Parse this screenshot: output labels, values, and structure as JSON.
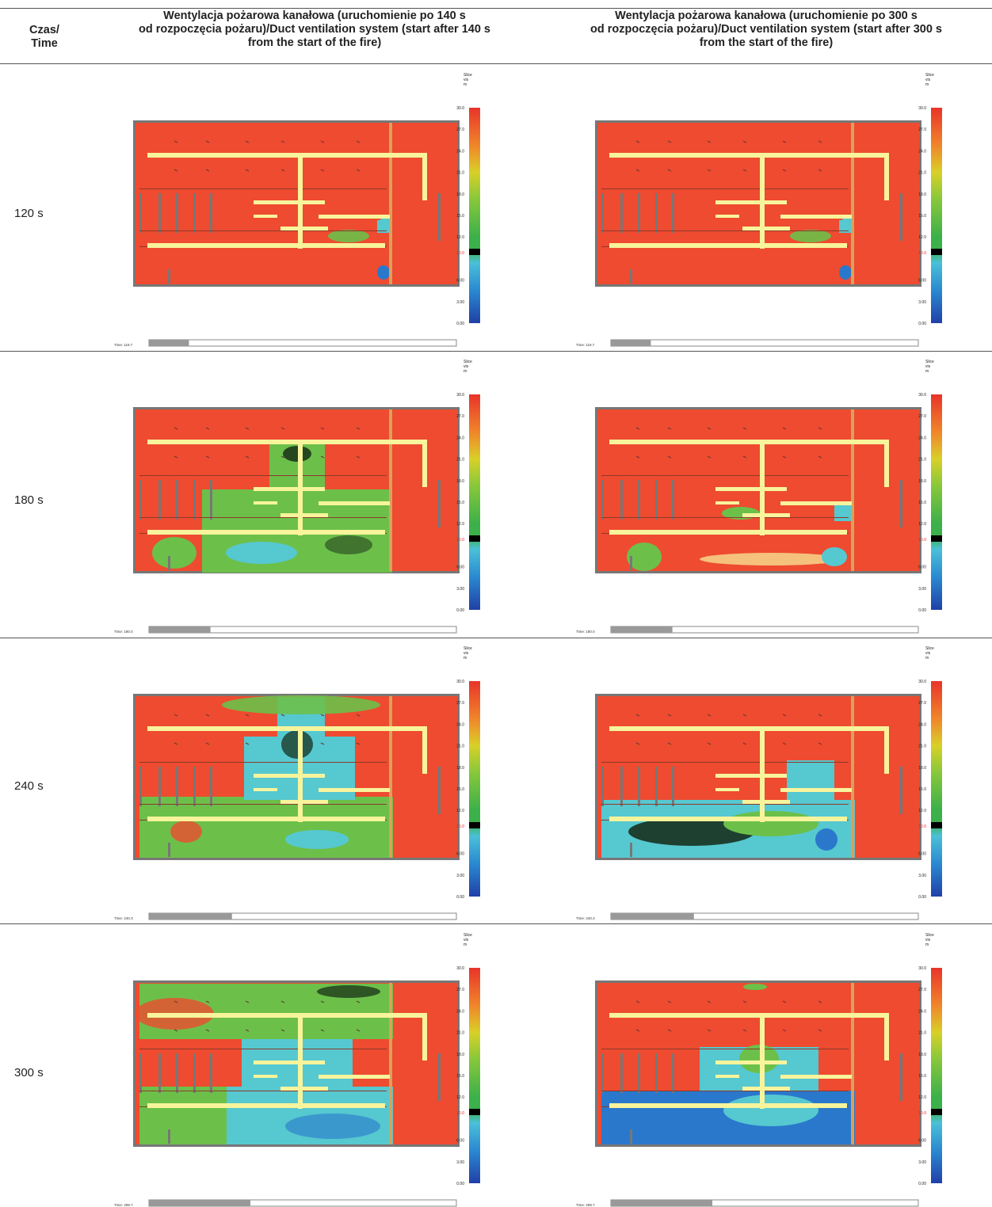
{
  "table": {
    "col0_header": [
      "Czas/",
      "Time"
    ],
    "col1_header": [
      "Wentylacja pożarowa kanałowa (uruchomienie po 140 s",
      "od rozpoczęcia pożaru)/Duct ventilation system (start after 140 s",
      "from the start of the fire)"
    ],
    "col2_header": [
      "Wentylacja pożarowa kanałowa (uruchomienie po 300 s",
      "od rozpoczęcia pożaru)/Duct ventilation system (start after 300 s",
      "from the start of the fire)"
    ],
    "rows": [
      {
        "time": "120 s",
        "left_time": "Time: 119.7",
        "right_time": "Time: 119.7",
        "left_progress": 0.13,
        "right_progress": 0.13,
        "left_spread": 0,
        "right_spread": 0
      },
      {
        "time": "180 s",
        "left_time": "Time: 180.0",
        "right_time": "Time: 180.0",
        "left_progress": 0.2,
        "right_progress": 0.2,
        "left_spread": 1,
        "right_spread": 1
      },
      {
        "time": "240 s",
        "left_time": "Time: 240.3",
        "right_time": "Time: 240.3",
        "left_progress": 0.27,
        "right_progress": 0.27,
        "left_spread": 2,
        "right_spread": 2
      },
      {
        "time": "300 s",
        "left_time": "Time: 299.7",
        "right_time": "Time: 299.7",
        "left_progress": 0.33,
        "right_progress": 0.33,
        "left_spread": 3,
        "right_spread": 3
      }
    ]
  },
  "colorbar": {
    "title": [
      "Slice",
      "vis",
      "m"
    ],
    "ticks": [
      "30.0",
      "27.0",
      "24.0",
      "21.0",
      "18.0",
      "15.0",
      "12.0",
      "10.0",
      "6.00",
      "3.00",
      "0.00"
    ],
    "highlight_tick": "10.0",
    "highlight_color": "#e0201c"
  },
  "colors": {
    "background_red": "#ee4b30",
    "duct_yellow": "#f8f49c",
    "wall_gray": "#777777",
    "smoke_green": "#6cc04a",
    "smoke_cyan": "#56c8d0",
    "smoke_blue": "#2a78cc",
    "dark": "#142814"
  }
}
